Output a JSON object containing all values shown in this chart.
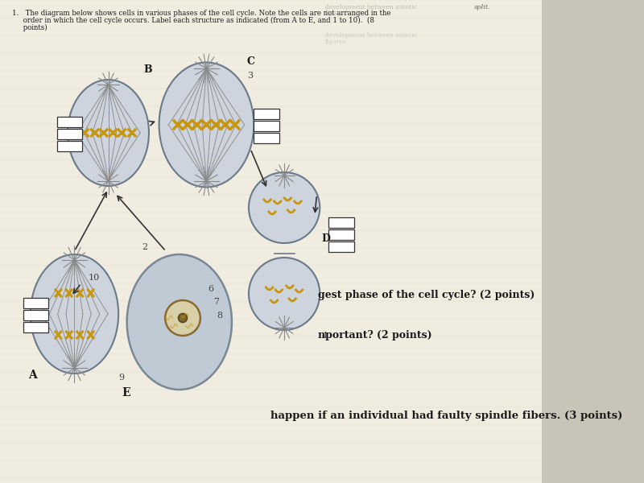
{
  "bg_color": "#c8c4b8",
  "paper_color": "#f0ece0",
  "title_line1": "1.   The diagram below shows cells in various phases of the cell cycle. Note the cells are not arranged in the",
  "title_line2": "     order in which the cell cycle occurs. Label each structure as indicated (from A to E, and 1 to 10).  (8",
  "title_line3": "     points)",
  "header_line1": "development between mitotic",
  "header_line2": "figures",
  "q1_text": "gest phase of the cell cycle? (2 points)",
  "q2_text": "nportant? (2 points)",
  "q3_text": "happen if an individual had faulty spindle fibers. (3 points)",
  "split_text": "split.",
  "cell_fill_light": "#cdd4de",
  "cell_fill_interphase": "#b8c4d4",
  "cell_outline": "#6a7a8a",
  "chrom_color": "#c8960a",
  "spindle_color": "#909090",
  "aster_color": "#888888",
  "nucleus_fill": "#d8d0a8",
  "nucleolus_fill": "#7a6830",
  "label_box_fc": "#ffffff",
  "label_box_ec": "#333333",
  "arrow_color": "#333333",
  "text_color": "#1a1a1a",
  "faint_text_color": "#999999"
}
